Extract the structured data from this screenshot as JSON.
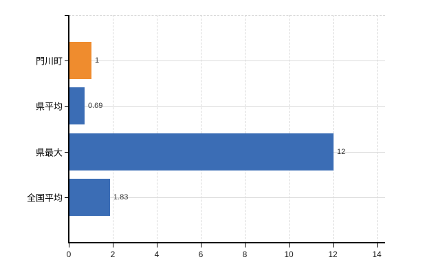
{
  "chart_data": {
    "type": "bar",
    "orientation": "horizontal",
    "title": "",
    "categories": [
      "門川町",
      "県平均",
      "県最大",
      "全国平均"
    ],
    "values": [
      1,
      0.69,
      12,
      1.83
    ],
    "value_labels": [
      "1",
      "0.69",
      "12",
      "1.83"
    ],
    "bar_colors": [
      "#ef8c2e",
      "#3b6db5",
      "#3b6db5",
      "#3b6db5"
    ],
    "x_ticks": [
      0,
      2,
      4,
      6,
      8,
      10,
      12,
      14
    ],
    "xlim": [
      0,
      14.4
    ],
    "xlabel": "",
    "ylabel": "",
    "grid": true,
    "legend": false,
    "colors": {
      "orange_bar": "#ef8c2e",
      "blue_bar": "#3b6db5",
      "grid_line": "#d9d9d9",
      "axis_line": "#000000",
      "category_label": "#000000",
      "value_label": "#333333",
      "tick_label": "#1a1a1a",
      "background": "#ffffff"
    }
  }
}
